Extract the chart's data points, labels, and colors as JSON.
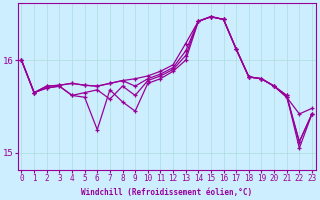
{
  "xlabel": "Windchill (Refroidissement éolien,°C)",
  "background_color": "#cceeff",
  "line_color": "#990099",
  "x_ticks": [
    0,
    1,
    2,
    3,
    4,
    5,
    6,
    7,
    8,
    9,
    10,
    11,
    12,
    13,
    14,
    15,
    16,
    17,
    18,
    19,
    20,
    21,
    22,
    23
  ],
  "y_ticks": [
    15,
    16
  ],
  "ylim": [
    14.82,
    16.62
  ],
  "xlim": [
    -0.3,
    23.3
  ],
  "series": [
    [
      16.0,
      15.65,
      15.72,
      15.73,
      15.75,
      15.73,
      15.72,
      15.75,
      15.78,
      15.8,
      15.83,
      15.88,
      15.95,
      16.18,
      16.42,
      16.47,
      16.44,
      16.12,
      15.82,
      15.8,
      15.72,
      15.6,
      15.42,
      15.48
    ],
    [
      16.0,
      15.65,
      15.72,
      15.73,
      15.75,
      15.73,
      15.72,
      15.75,
      15.78,
      15.72,
      15.8,
      15.85,
      15.92,
      16.1,
      16.42,
      16.47,
      16.44,
      16.12,
      15.82,
      15.8,
      15.72,
      15.6,
      15.12,
      15.42
    ],
    [
      16.0,
      15.65,
      15.7,
      15.72,
      15.62,
      15.65,
      15.68,
      15.58,
      15.72,
      15.62,
      15.78,
      15.83,
      15.9,
      16.05,
      16.42,
      16.47,
      16.44,
      16.12,
      15.82,
      15.8,
      15.72,
      15.62,
      15.12,
      15.42
    ],
    [
      16.0,
      15.65,
      15.7,
      15.72,
      15.62,
      15.6,
      15.25,
      15.68,
      15.55,
      15.45,
      15.75,
      15.8,
      15.88,
      16.0,
      16.42,
      16.47,
      16.44,
      16.12,
      15.82,
      15.8,
      15.72,
      15.62,
      15.05,
      15.42
    ]
  ],
  "grid_color": "#aadddd",
  "grid_linewidth": 0.5,
  "line_linewidth": 0.9,
  "marker": "+",
  "markersize": 3.5,
  "markeredgewidth": 0.9,
  "xlabel_fontsize": 5.5,
  "tick_fontsize": 5.5,
  "ytick_fontsize": 6.5
}
